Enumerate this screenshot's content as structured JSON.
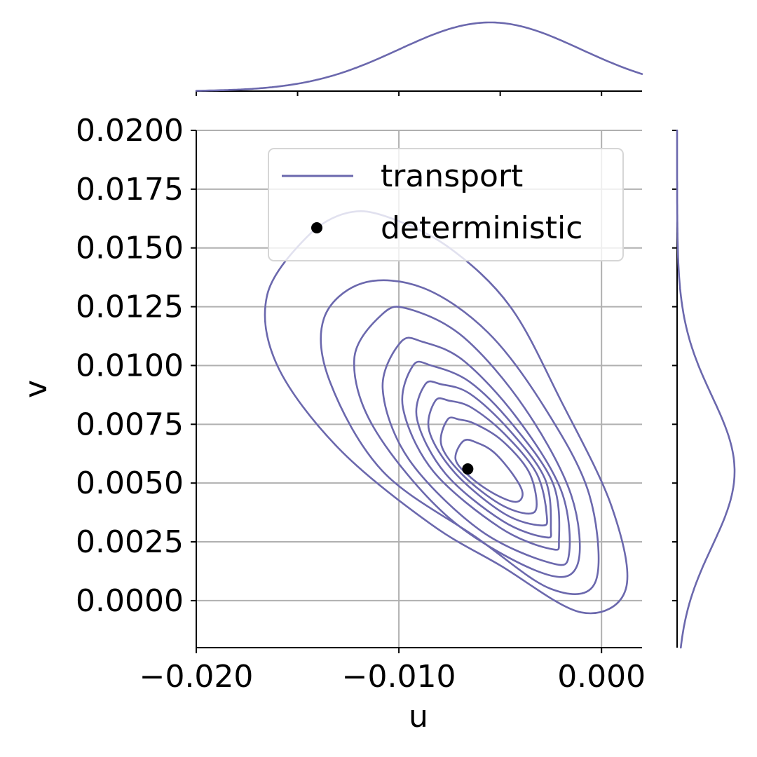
{
  "chart_data": {
    "type": "scatter",
    "subtype": "joint-kde-contour",
    "xlabel": "u",
    "ylabel": "v",
    "xlim": [
      -0.02,
      0.002
    ],
    "ylim": [
      -0.002,
      0.02
    ],
    "x_ticks": [
      -0.02,
      -0.01,
      0.0
    ],
    "x_tick_labels": [
      "−0.020",
      "−0.010",
      "0.000"
    ],
    "y_ticks": [
      0.0,
      0.0025,
      0.005,
      0.0075,
      0.01,
      0.0125,
      0.015,
      0.0175,
      0.02
    ],
    "y_tick_labels": [
      "0.0000",
      "0.0025",
      "0.0050",
      "0.0075",
      "0.0100",
      "0.0125",
      "0.0150",
      "0.0175",
      "0.0200"
    ],
    "grid": true,
    "legend": {
      "placement": "upper right"
    },
    "series": [
      {
        "name": "transport",
        "kind": "kde",
        "color": "#6b68ad",
        "kde_center": [
          -0.0055,
          0.0055
        ],
        "kde_std": [
          0.0045,
          0.0032
        ],
        "kde_correlation": -0.7,
        "contours": [
          {
            "level": 1,
            "points": [
              [
                -0.0145,
                0.0155
              ],
              [
                -0.0165,
                0.013
              ],
              [
                -0.016,
                0.01
              ],
              [
                -0.013,
                0.0065
              ],
              [
                -0.0085,
                0.0033
              ],
              [
                -0.005,
                0.0015
              ],
              [
                -0.001,
                -0.0005
              ],
              [
                0.0012,
                0.0005
              ],
              [
                0.0005,
                0.004
              ],
              [
                -0.002,
                0.0085
              ],
              [
                -0.0045,
                0.0125
              ],
              [
                -0.0075,
                0.015
              ],
              [
                -0.0105,
                0.0163
              ],
              [
                -0.0125,
                0.0165
              ]
            ]
          },
          {
            "level": 2,
            "points": [
              [
                -0.0118,
                0.0135
              ],
              [
                -0.0137,
                0.012
              ],
              [
                -0.0134,
                0.0093
              ],
              [
                -0.0108,
                0.0055
              ],
              [
                -0.0062,
                0.0027
              ],
              [
                -0.0025,
                0.0005
              ],
              [
                -0.0003,
                0.0008
              ],
              [
                -0.0006,
                0.0045
              ],
              [
                -0.0028,
                0.0082
              ],
              [
                -0.0056,
                0.0114
              ],
              [
                -0.0088,
                0.0133
              ]
            ]
          },
          {
            "level": 3,
            "points": [
              [
                -0.0108,
                0.0122
              ],
              [
                -0.0122,
                0.0103
              ],
              [
                -0.0112,
                0.0073
              ],
              [
                -0.0075,
                0.0035
              ],
              [
                -0.003,
                0.0012
              ],
              [
                -0.0012,
                0.0015
              ],
              [
                -0.0015,
                0.0045
              ],
              [
                -0.0038,
                0.0082
              ],
              [
                -0.0068,
                0.0112
              ],
              [
                -0.0095,
                0.0124
              ]
            ]
          },
          {
            "level": 4,
            "points": [
              [
                -0.0099,
                0.011
              ],
              [
                -0.0108,
                0.009
              ],
              [
                -0.0095,
                0.006
              ],
              [
                -0.006,
                0.003
              ],
              [
                -0.0025,
                0.0016
              ],
              [
                -0.0016,
                0.002
              ],
              [
                -0.002,
                0.0047
              ],
              [
                -0.0042,
                0.0078
              ],
              [
                -0.0068,
                0.0102
              ],
              [
                -0.0088,
                0.011
              ]
            ]
          },
          {
            "level": 5,
            "points": [
              [
                -0.0093,
                0.01
              ],
              [
                -0.0098,
                0.0082
              ],
              [
                -0.0083,
                0.0055
              ],
              [
                -0.005,
                0.0031
              ],
              [
                -0.0025,
                0.0022
              ],
              [
                -0.0021,
                0.0026
              ],
              [
                -0.0024,
                0.005
              ],
              [
                -0.0044,
                0.0075
              ],
              [
                -0.0065,
                0.0093
              ],
              [
                -0.0084,
                0.01
              ]
            ]
          },
          {
            "level": 6,
            "points": [
              [
                -0.0087,
                0.0092
              ],
              [
                -0.0091,
                0.0077
              ],
              [
                -0.0077,
                0.0054
              ],
              [
                -0.0049,
                0.0034
              ],
              [
                -0.0028,
                0.0027
              ],
              [
                -0.0025,
                0.0031
              ],
              [
                -0.0028,
                0.0052
              ],
              [
                -0.0046,
                0.0073
              ],
              [
                -0.0065,
                0.0088
              ],
              [
                -0.0079,
                0.0092
              ]
            ]
          },
          {
            "level": 7,
            "points": [
              [
                -0.0082,
                0.0085
              ],
              [
                -0.0085,
                0.0072
              ],
              [
                -0.0072,
                0.0054
              ],
              [
                -0.0048,
                0.0037
              ],
              [
                -0.003,
                0.0032
              ],
              [
                -0.0027,
                0.0036
              ],
              [
                -0.0032,
                0.0054
              ],
              [
                -0.0048,
                0.0071
              ],
              [
                -0.0064,
                0.0082
              ],
              [
                -0.0075,
                0.0085
              ]
            ]
          },
          {
            "level": 8,
            "points": [
              [
                -0.0076,
                0.0077
              ],
              [
                -0.0079,
                0.0066
              ],
              [
                -0.0068,
                0.0053
              ],
              [
                -0.005,
                0.0041
              ],
              [
                -0.0036,
                0.0037
              ],
              [
                -0.0032,
                0.0041
              ],
              [
                -0.0036,
                0.0055
              ],
              [
                -0.0049,
                0.0068
              ],
              [
                -0.0062,
                0.0075
              ],
              [
                -0.007,
                0.0077
              ]
            ]
          },
          {
            "level": 9,
            "points": [
              [
                -0.0068,
                0.0068
              ],
              [
                -0.0072,
                0.006
              ],
              [
                -0.0064,
                0.0052
              ],
              [
                -0.0052,
                0.0045
              ],
              [
                -0.0042,
                0.0042
              ],
              [
                -0.0039,
                0.0046
              ],
              [
                -0.0044,
                0.0054
              ],
              [
                -0.0053,
                0.0063
              ],
              [
                -0.0061,
                0.0067
              ]
            ]
          }
        ]
      },
      {
        "name": "deterministic",
        "kind": "points",
        "color": "#000000",
        "points": [
          [
            -0.0066,
            0.0056
          ]
        ]
      }
    ]
  }
}
